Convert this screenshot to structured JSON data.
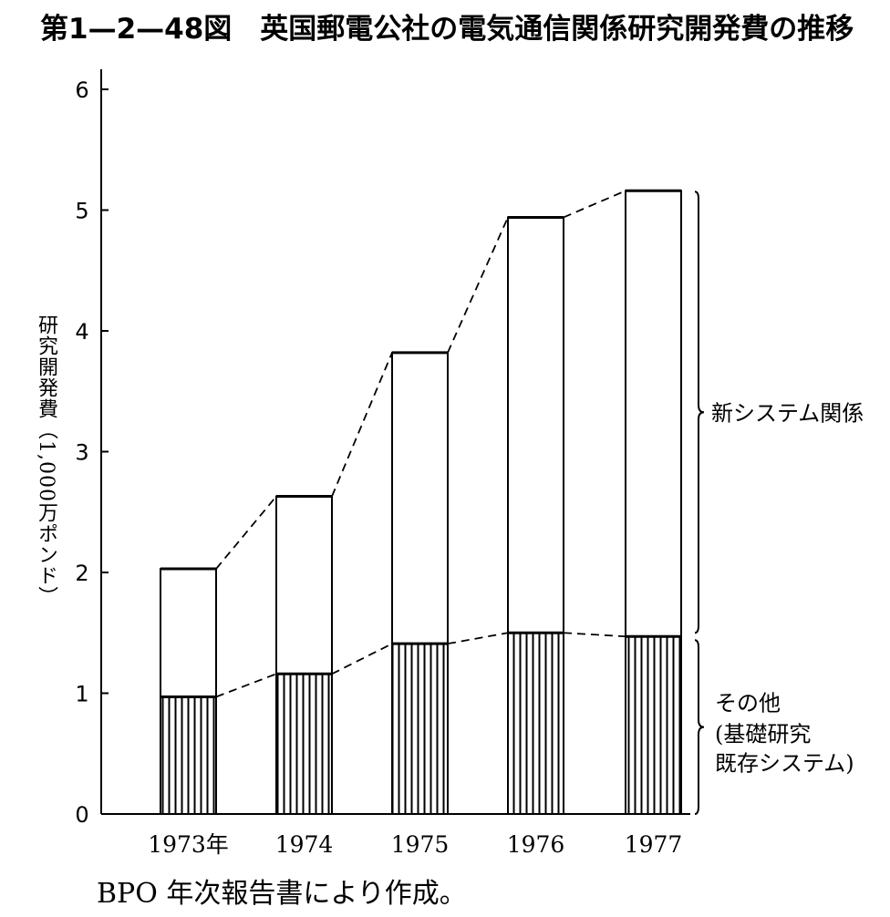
{
  "title": "第1—2—48図　英国郵電公社の電気通信関係研究開発費の推移",
  "source": "BPO 年次報告書により作成。",
  "chart_data": {
    "type": "bar",
    "stacked": true,
    "title": "第1—2—48図　英国郵電公社の電気通信関係研究開発費の推移",
    "ylabel": "研究開発費（1,000万ポンド）",
    "xlabel": "",
    "categories": [
      "1973年",
      "1974",
      "1975",
      "1976",
      "1977"
    ],
    "ylim": [
      0,
      6
    ],
    "yticks": [
      0,
      1,
      2,
      3,
      4,
      5,
      6
    ],
    "series": [
      {
        "name_lines": [
          "その他",
          "(基礎研究",
          "既存システム)"
        ],
        "values": [
          0.97,
          1.16,
          1.41,
          1.5,
          1.47
        ],
        "fill": "vertical-hatch"
      },
      {
        "name_lines": [
          "新システム関係"
        ],
        "values": [
          1.06,
          1.47,
          2.41,
          3.44,
          3.69
        ],
        "fill": "white"
      }
    ],
    "totals": [
      2.03,
      2.63,
      3.82,
      4.94,
      5.16
    ],
    "connectors": "dashed",
    "legend": "right-brackets",
    "grid": false
  }
}
